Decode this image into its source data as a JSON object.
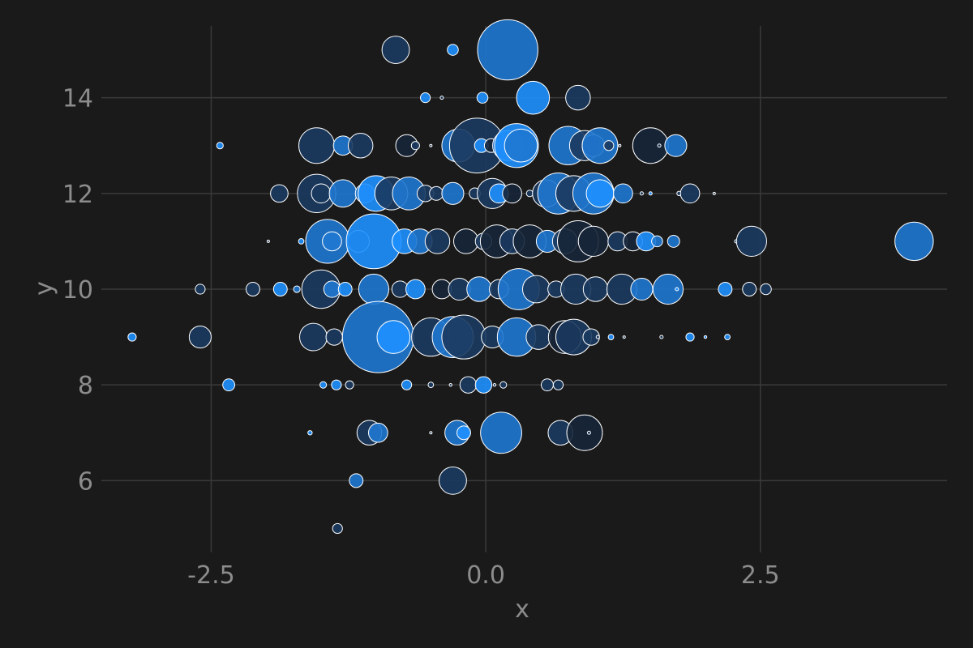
{
  "chart_data": {
    "type": "scatter",
    "subtype": "bubble",
    "title": "",
    "xlabel": "x",
    "ylabel": "y",
    "xlim": [
      -3.5,
      4.2
    ],
    "ylim": [
      4.5,
      15.5
    ],
    "x_ticks": [
      -2.5,
      0.0,
      2.5
    ],
    "x_tick_labels": [
      "-2.5",
      "0.0",
      "2.5"
    ],
    "y_ticks": [
      6,
      8,
      10,
      12,
      14
    ],
    "y_tick_labels": [
      "6",
      "8",
      "10",
      "12",
      "14"
    ],
    "grid": true,
    "legend": "none",
    "colors": {
      "background": "#1a1a1a",
      "bright": "#1e90ff",
      "medium": "#1f78d1",
      "dark": "#1b3a5f",
      "darkest": "#17263a",
      "outline": "#ffffff",
      "grid": "#3a3a3a",
      "text": "#8c8c8c"
    },
    "points": [
      {
        "x": -0.82,
        "y": 15,
        "size": 0.5,
        "shade": "dark"
      },
      {
        "x": -0.3,
        "y": 15,
        "size": 0.2,
        "shade": "bright"
      },
      {
        "x": 0.2,
        "y": 15,
        "size": 1.1,
        "shade": "medium"
      },
      {
        "x": -0.55,
        "y": 14,
        "size": 0.18,
        "shade": "bright"
      },
      {
        "x": -0.4,
        "y": 14,
        "size": 0.06,
        "shade": "dark"
      },
      {
        "x": -0.03,
        "y": 14,
        "size": 0.2,
        "shade": "bright"
      },
      {
        "x": 0.43,
        "y": 14,
        "size": 0.6,
        "shade": "bright"
      },
      {
        "x": 0.84,
        "y": 14,
        "size": 0.45,
        "shade": "dark"
      },
      {
        "x": -2.42,
        "y": 13,
        "size": 0.12,
        "shade": "bright"
      },
      {
        "x": -1.54,
        "y": 13,
        "size": 0.65,
        "shade": "dark"
      },
      {
        "x": -1.3,
        "y": 13,
        "size": 0.35,
        "shade": "medium"
      },
      {
        "x": -1.14,
        "y": 13,
        "size": 0.45,
        "shade": "dark"
      },
      {
        "x": -0.72,
        "y": 13,
        "size": 0.4,
        "shade": "darkest"
      },
      {
        "x": -0.64,
        "y": 13,
        "size": 0.15,
        "shade": "dark"
      },
      {
        "x": -0.5,
        "y": 13,
        "size": 0.04,
        "shade": "dark"
      },
      {
        "x": -0.25,
        "y": 13,
        "size": 0.6,
        "shade": "medium"
      },
      {
        "x": -0.08,
        "y": 13,
        "size": 1.0,
        "shade": "dark"
      },
      {
        "x": -0.04,
        "y": 13,
        "size": 0.25,
        "shade": "bright"
      },
      {
        "x": 0.05,
        "y": 13,
        "size": 0.25,
        "shade": "darkest"
      },
      {
        "x": 0.2,
        "y": 13,
        "size": 0.55,
        "shade": "medium"
      },
      {
        "x": 0.28,
        "y": 13,
        "size": 0.8,
        "shade": "bright"
      },
      {
        "x": 0.32,
        "y": 13,
        "size": 0.6,
        "shade": "medium"
      },
      {
        "x": 0.75,
        "y": 13,
        "size": 0.7,
        "shade": "medium"
      },
      {
        "x": 0.9,
        "y": 13,
        "size": 0.55,
        "shade": "dark"
      },
      {
        "x": 0.98,
        "y": 13,
        "size": 0.4,
        "shade": "dark"
      },
      {
        "x": 1.04,
        "y": 13,
        "size": 0.65,
        "shade": "medium"
      },
      {
        "x": 1.12,
        "y": 13,
        "size": 0.18,
        "shade": "dark"
      },
      {
        "x": 1.22,
        "y": 13,
        "size": 0.03,
        "shade": "dark"
      },
      {
        "x": 1.5,
        "y": 13,
        "size": 0.65,
        "shade": "darkest"
      },
      {
        "x": 1.58,
        "y": 13,
        "size": 0.06,
        "shade": "dark"
      },
      {
        "x": 1.73,
        "y": 13,
        "size": 0.4,
        "shade": "medium"
      },
      {
        "x": -1.88,
        "y": 12,
        "size": 0.32,
        "shade": "dark"
      },
      {
        "x": -1.54,
        "y": 12,
        "size": 0.7,
        "shade": "dark"
      },
      {
        "x": -1.5,
        "y": 12,
        "size": 0.35,
        "shade": "dark"
      },
      {
        "x": -1.3,
        "y": 12,
        "size": 0.5,
        "shade": "medium"
      },
      {
        "x": -1.1,
        "y": 12,
        "size": 0.35,
        "shade": "medium"
      },
      {
        "x": -1.0,
        "y": 12,
        "size": 0.65,
        "shade": "bright"
      },
      {
        "x": -0.86,
        "y": 12,
        "size": 0.6,
        "shade": "dark"
      },
      {
        "x": -0.7,
        "y": 12,
        "size": 0.6,
        "shade": "medium"
      },
      {
        "x": -0.55,
        "y": 12,
        "size": 0.3,
        "shade": "dark"
      },
      {
        "x": -0.45,
        "y": 12,
        "size": 0.25,
        "shade": "dark"
      },
      {
        "x": -0.3,
        "y": 12,
        "size": 0.4,
        "shade": "medium"
      },
      {
        "x": -0.1,
        "y": 12,
        "size": 0.2,
        "shade": "dark"
      },
      {
        "x": 0.06,
        "y": 12,
        "size": 0.55,
        "shade": "dark"
      },
      {
        "x": 0.12,
        "y": 12,
        "size": 0.35,
        "shade": "bright"
      },
      {
        "x": 0.24,
        "y": 12,
        "size": 0.35,
        "shade": "darkest"
      },
      {
        "x": 0.4,
        "y": 12,
        "size": 0.12,
        "shade": "dark"
      },
      {
        "x": 0.55,
        "y": 12,
        "size": 0.5,
        "shade": "dark"
      },
      {
        "x": 0.66,
        "y": 12,
        "size": 0.75,
        "shade": "medium"
      },
      {
        "x": 0.8,
        "y": 12,
        "size": 0.65,
        "shade": "dark"
      },
      {
        "x": 0.98,
        "y": 12,
        "size": 0.75,
        "shade": "medium"
      },
      {
        "x": 1.04,
        "y": 12,
        "size": 0.5,
        "shade": "bright"
      },
      {
        "x": 1.25,
        "y": 12,
        "size": 0.35,
        "shade": "medium"
      },
      {
        "x": 1.42,
        "y": 12,
        "size": 0.06,
        "shade": "dark"
      },
      {
        "x": 1.5,
        "y": 12,
        "size": 0.06,
        "shade": "bright"
      },
      {
        "x": 1.76,
        "y": 12,
        "size": 0.08,
        "shade": "dark"
      },
      {
        "x": 1.86,
        "y": 12,
        "size": 0.35,
        "shade": "dark"
      },
      {
        "x": 2.08,
        "y": 12,
        "size": 0.04,
        "shade": "dark"
      },
      {
        "x": -1.98,
        "y": 11,
        "size": 0.04,
        "shade": "dark"
      },
      {
        "x": -1.68,
        "y": 11,
        "size": 0.1,
        "shade": "bright"
      },
      {
        "x": -1.44,
        "y": 11,
        "size": 0.8,
        "shade": "medium"
      },
      {
        "x": -1.4,
        "y": 11,
        "size": 0.35,
        "shade": "medium"
      },
      {
        "x": -1.16,
        "y": 11,
        "size": 0.4,
        "shade": "dark"
      },
      {
        "x": -1.02,
        "y": 11,
        "size": 1.0,
        "shade": "bright"
      },
      {
        "x": -0.74,
        "y": 11,
        "size": 0.45,
        "shade": "bright"
      },
      {
        "x": -0.6,
        "y": 11,
        "size": 0.45,
        "shade": "medium"
      },
      {
        "x": -0.44,
        "y": 11,
        "size": 0.45,
        "shade": "dark"
      },
      {
        "x": -0.18,
        "y": 11,
        "size": 0.45,
        "shade": "darkest"
      },
      {
        "x": -0.02,
        "y": 11,
        "size": 0.3,
        "shade": "dark"
      },
      {
        "x": 0.1,
        "y": 11,
        "size": 0.6,
        "shade": "darkest"
      },
      {
        "x": 0.24,
        "y": 11,
        "size": 0.45,
        "shade": "dark"
      },
      {
        "x": 0.4,
        "y": 11,
        "size": 0.6,
        "shade": "darkest"
      },
      {
        "x": 0.56,
        "y": 11,
        "size": 0.4,
        "shade": "medium"
      },
      {
        "x": 0.72,
        "y": 11,
        "size": 0.45,
        "shade": "dark"
      },
      {
        "x": 0.84,
        "y": 11,
        "size": 0.75,
        "shade": "darkest"
      },
      {
        "x": 0.98,
        "y": 11,
        "size": 0.55,
        "shade": "darkest"
      },
      {
        "x": 1.2,
        "y": 11,
        "size": 0.35,
        "shade": "dark"
      },
      {
        "x": 1.34,
        "y": 11,
        "size": 0.35,
        "shade": "darkest"
      },
      {
        "x": 1.46,
        "y": 11,
        "size": 0.35,
        "shade": "bright"
      },
      {
        "x": 1.56,
        "y": 11,
        "size": 0.2,
        "shade": "medium"
      },
      {
        "x": 1.71,
        "y": 11,
        "size": 0.22,
        "shade": "medium"
      },
      {
        "x": 2.28,
        "y": 11,
        "size": 0.06,
        "shade": "dark"
      },
      {
        "x": 2.42,
        "y": 11,
        "size": 0.55,
        "shade": "dark"
      },
      {
        "x": 3.9,
        "y": 11,
        "size": 0.7,
        "shade": "medium"
      },
      {
        "x": -2.6,
        "y": 10,
        "size": 0.18,
        "shade": "dark"
      },
      {
        "x": -2.12,
        "y": 10,
        "size": 0.25,
        "shade": "dark"
      },
      {
        "x": -1.87,
        "y": 10,
        "size": 0.25,
        "shade": "bright"
      },
      {
        "x": -1.72,
        "y": 10,
        "size": 0.12,
        "shade": "medium"
      },
      {
        "x": -1.5,
        "y": 10,
        "size": 0.7,
        "shade": "dark"
      },
      {
        "x": -1.4,
        "y": 10,
        "size": 0.3,
        "shade": "medium"
      },
      {
        "x": -1.28,
        "y": 10,
        "size": 0.25,
        "shade": "bright"
      },
      {
        "x": -1.02,
        "y": 10,
        "size": 0.55,
        "shade": "medium"
      },
      {
        "x": -0.78,
        "y": 10,
        "size": 0.3,
        "shade": "dark"
      },
      {
        "x": -0.64,
        "y": 10,
        "size": 0.35,
        "shade": "bright"
      },
      {
        "x": -0.4,
        "y": 10,
        "size": 0.35,
        "shade": "darkest"
      },
      {
        "x": -0.24,
        "y": 10,
        "size": 0.4,
        "shade": "dark"
      },
      {
        "x": -0.06,
        "y": 10,
        "size": 0.45,
        "shade": "medium"
      },
      {
        "x": 0.12,
        "y": 10,
        "size": 0.35,
        "shade": "dark"
      },
      {
        "x": 0.3,
        "y": 10,
        "size": 0.75,
        "shade": "medium"
      },
      {
        "x": 0.46,
        "y": 10,
        "size": 0.5,
        "shade": "dark"
      },
      {
        "x": 0.64,
        "y": 10,
        "size": 0.3,
        "shade": "dark"
      },
      {
        "x": 0.82,
        "y": 10,
        "size": 0.55,
        "shade": "dark"
      },
      {
        "x": 1.0,
        "y": 10,
        "size": 0.45,
        "shade": "dark"
      },
      {
        "x": 1.24,
        "y": 10,
        "size": 0.55,
        "shade": "dark"
      },
      {
        "x": 1.42,
        "y": 10,
        "size": 0.4,
        "shade": "medium"
      },
      {
        "x": 1.66,
        "y": 10,
        "size": 0.55,
        "shade": "medium"
      },
      {
        "x": 1.74,
        "y": 10,
        "size": 0.06,
        "shade": "bright"
      },
      {
        "x": 2.18,
        "y": 10,
        "size": 0.25,
        "shade": "bright"
      },
      {
        "x": 2.4,
        "y": 10,
        "size": 0.25,
        "shade": "dark"
      },
      {
        "x": 2.55,
        "y": 10,
        "size": 0.2,
        "shade": "dark"
      },
      {
        "x": -3.22,
        "y": 9,
        "size": 0.15,
        "shade": "bright"
      },
      {
        "x": -2.6,
        "y": 9,
        "size": 0.4,
        "shade": "dark"
      },
      {
        "x": -1.57,
        "y": 9,
        "size": 0.5,
        "shade": "dark"
      },
      {
        "x": -1.38,
        "y": 9,
        "size": 0.3,
        "shade": "dark"
      },
      {
        "x": -0.98,
        "y": 9,
        "size": 1.3,
        "shade": "medium"
      },
      {
        "x": -0.84,
        "y": 9,
        "size": 0.6,
        "shade": "bright"
      },
      {
        "x": -0.5,
        "y": 9,
        "size": 0.7,
        "shade": "dark"
      },
      {
        "x": -0.3,
        "y": 9,
        "size": 0.75,
        "shade": "medium"
      },
      {
        "x": -0.2,
        "y": 9,
        "size": 0.8,
        "shade": "dark"
      },
      {
        "x": 0.06,
        "y": 9,
        "size": 0.4,
        "shade": "dark"
      },
      {
        "x": 0.28,
        "y": 9,
        "size": 0.7,
        "shade": "medium"
      },
      {
        "x": 0.48,
        "y": 9,
        "size": 0.45,
        "shade": "dark"
      },
      {
        "x": 0.72,
        "y": 9,
        "size": 0.6,
        "shade": "darkest"
      },
      {
        "x": 0.8,
        "y": 9,
        "size": 0.65,
        "shade": "dark"
      },
      {
        "x": 0.96,
        "y": 9,
        "size": 0.3,
        "shade": "dark"
      },
      {
        "x": 1.02,
        "y": 9,
        "size": 0.06,
        "shade": "dark"
      },
      {
        "x": 1.14,
        "y": 9,
        "size": 0.1,
        "shade": "bright"
      },
      {
        "x": 1.26,
        "y": 9,
        "size": 0.04,
        "shade": "dark"
      },
      {
        "x": 1.6,
        "y": 9,
        "size": 0.06,
        "shade": "dark"
      },
      {
        "x": 1.86,
        "y": 9,
        "size": 0.15,
        "shade": "bright"
      },
      {
        "x": 2.0,
        "y": 9,
        "size": 0.05,
        "shade": "bright"
      },
      {
        "x": 2.2,
        "y": 9,
        "size": 0.1,
        "shade": "bright"
      },
      {
        "x": -2.34,
        "y": 8,
        "size": 0.22,
        "shade": "bright"
      },
      {
        "x": -1.48,
        "y": 8,
        "size": 0.12,
        "shade": "bright"
      },
      {
        "x": -1.36,
        "y": 8,
        "size": 0.18,
        "shade": "bright"
      },
      {
        "x": -1.24,
        "y": 8,
        "size": 0.15,
        "shade": "dark"
      },
      {
        "x": -0.72,
        "y": 8,
        "size": 0.18,
        "shade": "bright"
      },
      {
        "x": -0.5,
        "y": 8,
        "size": 0.1,
        "shade": "dark"
      },
      {
        "x": -0.32,
        "y": 8,
        "size": 0.05,
        "shade": "dark"
      },
      {
        "x": -0.16,
        "y": 8,
        "size": 0.3,
        "shade": "dark"
      },
      {
        "x": -0.02,
        "y": 8,
        "size": 0.3,
        "shade": "bright"
      },
      {
        "x": 0.08,
        "y": 8,
        "size": 0.05,
        "shade": "dark"
      },
      {
        "x": 0.16,
        "y": 8,
        "size": 0.12,
        "shade": "dark"
      },
      {
        "x": 0.56,
        "y": 8,
        "size": 0.22,
        "shade": "dark"
      },
      {
        "x": 0.66,
        "y": 8,
        "size": 0.18,
        "shade": "dark"
      },
      {
        "x": -1.6,
        "y": 7,
        "size": 0.08,
        "shade": "bright"
      },
      {
        "x": -1.06,
        "y": 7,
        "size": 0.45,
        "shade": "dark"
      },
      {
        "x": -0.98,
        "y": 7,
        "size": 0.35,
        "shade": "medium"
      },
      {
        "x": -0.5,
        "y": 7,
        "size": 0.04,
        "shade": "dark"
      },
      {
        "x": -0.26,
        "y": 7,
        "size": 0.45,
        "shade": "medium"
      },
      {
        "x": -0.2,
        "y": 7,
        "size": 0.25,
        "shade": "bright"
      },
      {
        "x": 0.14,
        "y": 7,
        "size": 0.75,
        "shade": "medium"
      },
      {
        "x": 0.68,
        "y": 7,
        "size": 0.45,
        "shade": "dark"
      },
      {
        "x": 0.9,
        "y": 7,
        "size": 0.65,
        "shade": "darkest"
      },
      {
        "x": 0.94,
        "y": 7,
        "size": 0.06,
        "shade": "dark"
      },
      {
        "x": -1.18,
        "y": 6,
        "size": 0.25,
        "shade": "medium"
      },
      {
        "x": -0.3,
        "y": 6,
        "size": 0.5,
        "shade": "dark"
      },
      {
        "x": -1.35,
        "y": 5,
        "size": 0.18,
        "shade": "dark"
      }
    ]
  }
}
